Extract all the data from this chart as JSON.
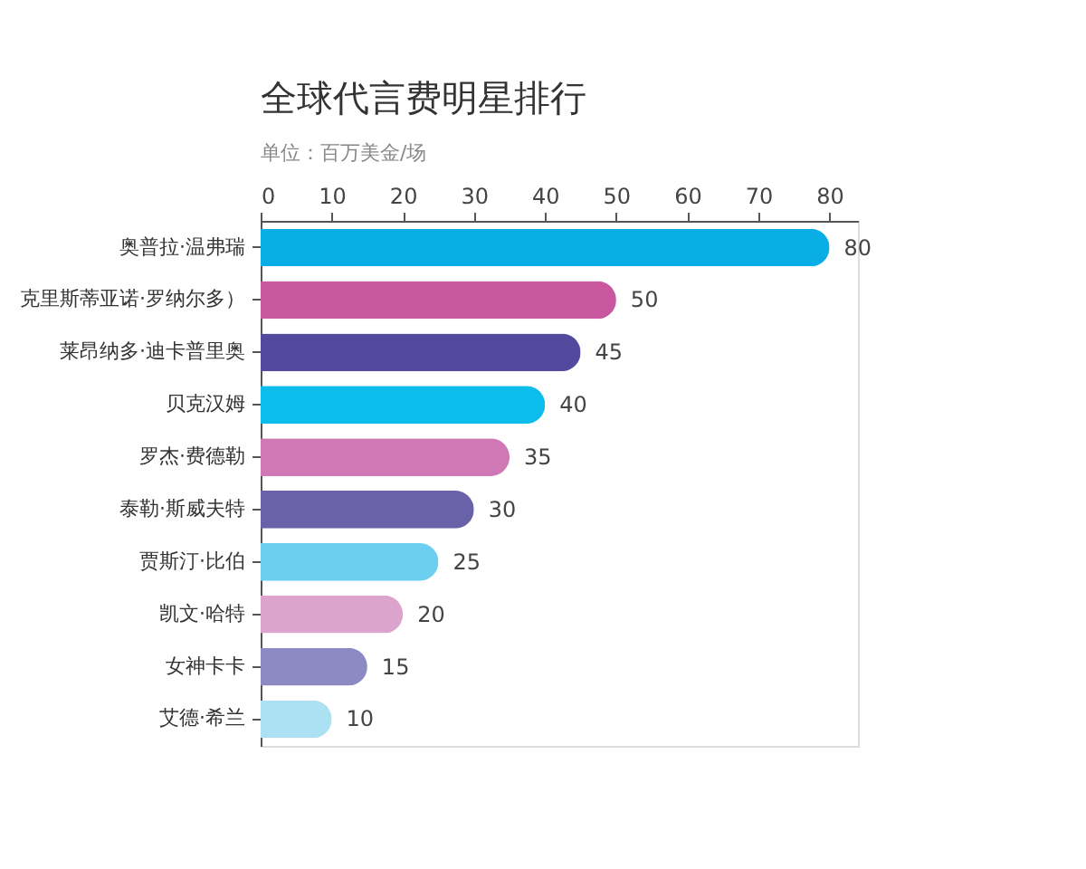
{
  "chart_data": {
    "type": "bar",
    "orientation": "horizontal",
    "title": "全球代言费明星排行",
    "subtitle": "单位：百万美金/场",
    "categories": [
      "奥普拉·温弗瑞",
      "克里斯蒂亚诺·罗纳尔多）",
      "莱昂纳多·迪卡普里奥",
      "贝克汉姆",
      "罗杰·费德勒",
      "泰勒·斯威夫特",
      "贾斯汀·比伯",
      "凯文·哈特",
      "女神卡卡",
      "艾德·希兰"
    ],
    "values": [
      80,
      50,
      45,
      40,
      35,
      30,
      25,
      20,
      15,
      10
    ],
    "colors": [
      "#0aaee6",
      "#c857a0",
      "#534a9e",
      "#0cbdec",
      "#cf78b5",
      "#6a62a8",
      "#6dcff0",
      "#dca4cc",
      "#8d89c2",
      "#abe1f3"
    ],
    "xlim": [
      0,
      84
    ],
    "xticks": [
      0,
      10,
      20,
      30,
      40,
      50,
      60,
      70,
      80
    ],
    "grid": false,
    "data_labels": true
  }
}
